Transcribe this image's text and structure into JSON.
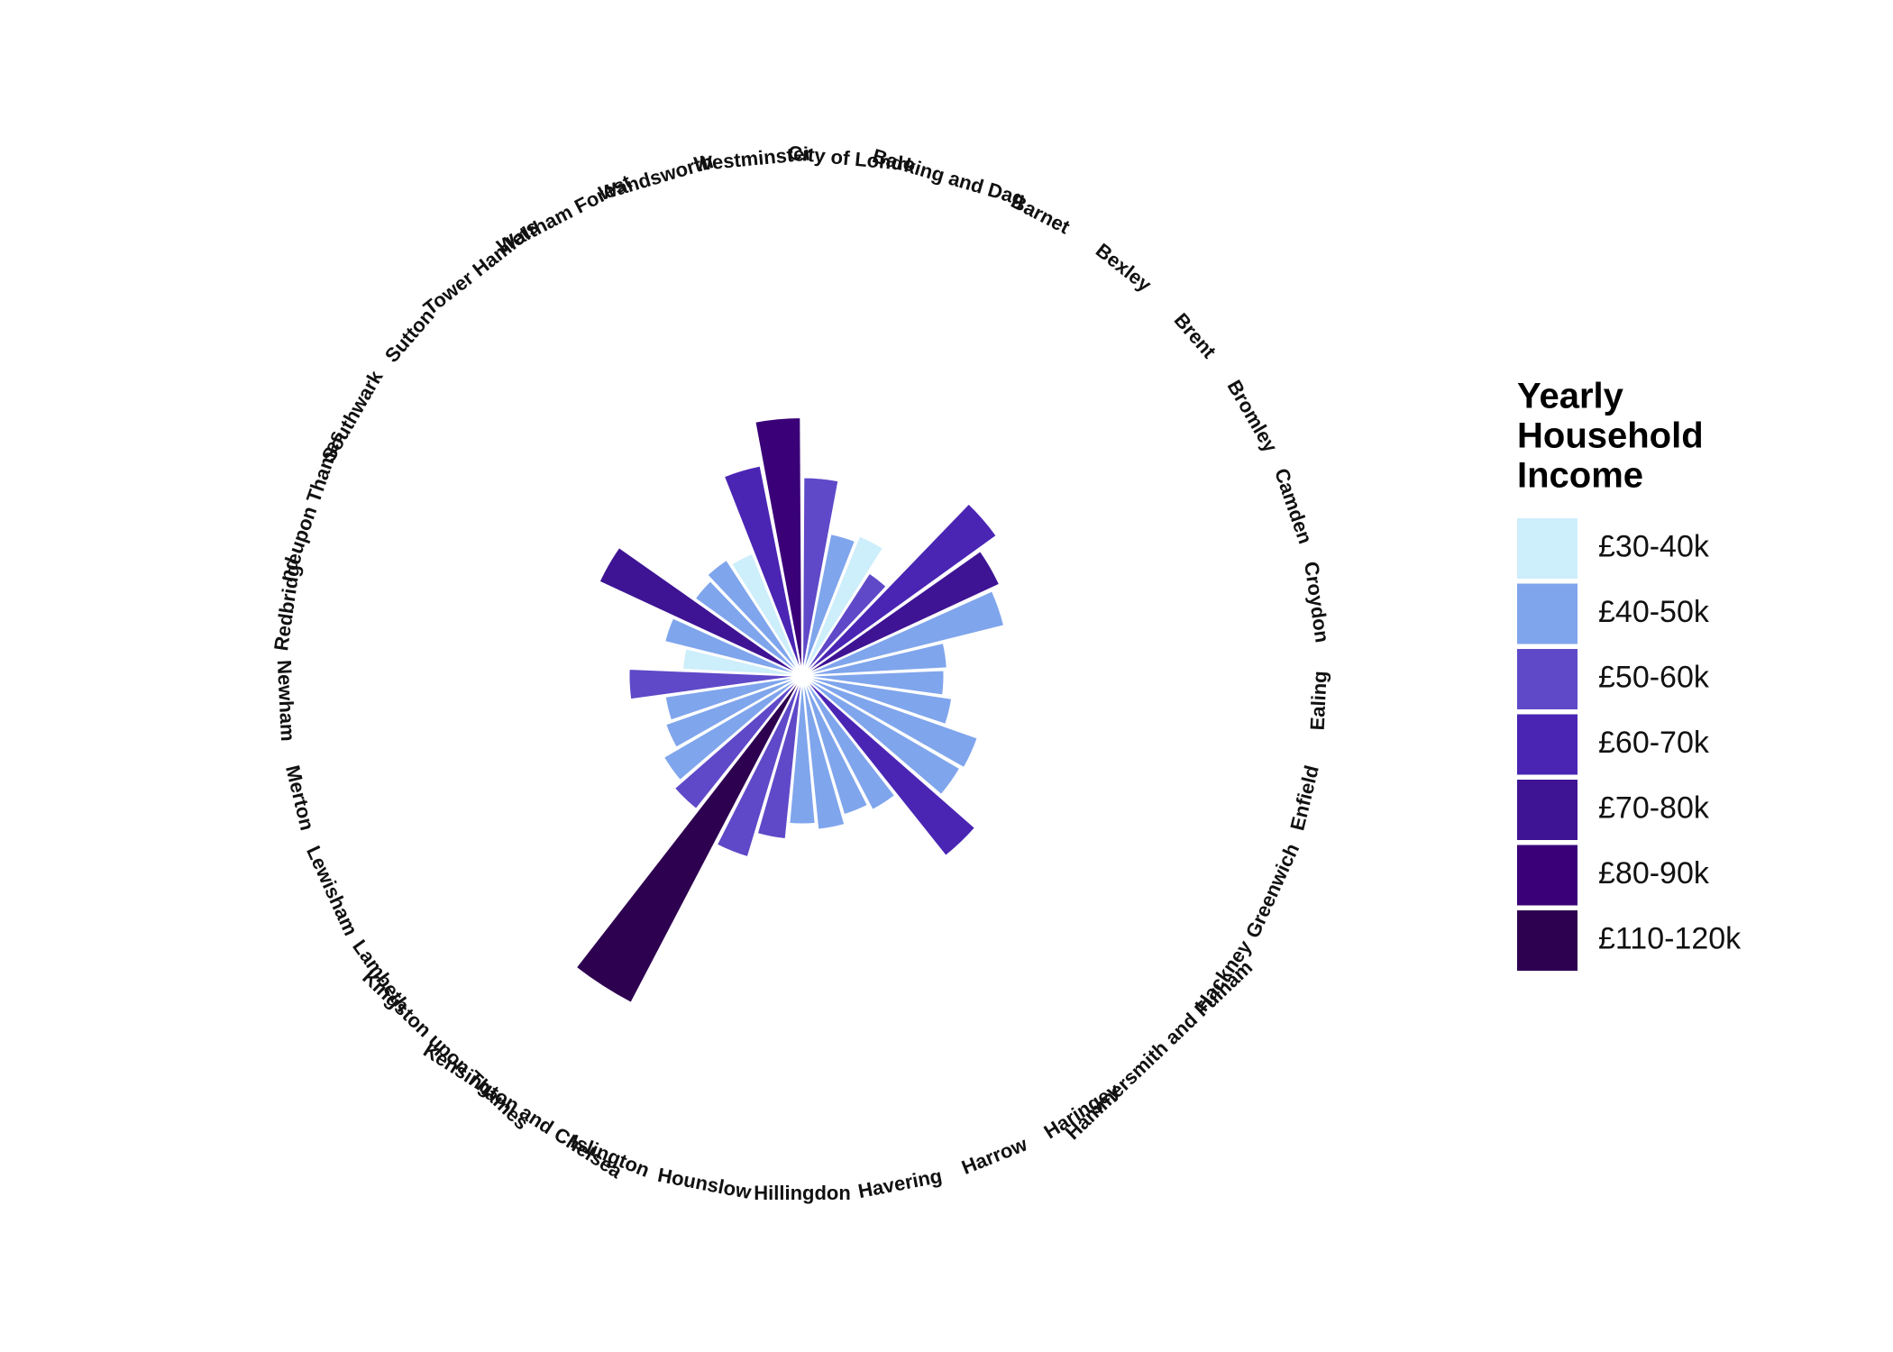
{
  "chart_data": {
    "type": "bar",
    "coordinate_system": "polar",
    "title": "",
    "xlabel": "",
    "ylabel": "",
    "grid": false,
    "legend": {
      "title": [
        "Yearly",
        "Household",
        "Income"
      ],
      "placement": "right",
      "entries": [
        {
          "label": "£30-40k",
          "color": "#cdeefb"
        },
        {
          "label": "£40-50k",
          "color": "#7fa5ec"
        },
        {
          "label": "£50-60k",
          "color": "#5f49c8"
        },
        {
          "label": "£60-70k",
          "color": "#4a25b4"
        },
        {
          "label": "£70-80k",
          "color": "#3e1494"
        },
        {
          "label": "£80-90k",
          "color": "#3a0078"
        },
        {
          "label": "£110-120k",
          "color": "#2e0050"
        }
      ]
    },
    "categories": [
      "City of London",
      "Barking and Dagenham",
      "Barnet",
      "Bexley",
      "Brent",
      "Bromley",
      "Camden",
      "Croydon",
      "Ealing",
      "Enfield",
      "Greenwich",
      "Hackney",
      "Hammersmith and Fulham",
      "Haringey",
      "Harrow",
      "Havering",
      "Hillingdon",
      "Hounslow",
      "Islington",
      "Kensington and Chelsea",
      "Kingston upon Thames",
      "Lambeth",
      "Lewisham",
      "Merton",
      "Newham",
      "Redbridge",
      "Richmond upon Thames",
      "Southwark",
      "Sutton",
      "Tower Hamlets",
      "Waltham Forest",
      "Wandsworth",
      "Westminster"
    ],
    "values": [
      63,
      46,
      48,
      39,
      76,
      69,
      66,
      46,
      45,
      48,
      59,
      58,
      73,
      48,
      46,
      49,
      47,
      52,
      60,
      117,
      54,
      51,
      46,
      44,
      55,
      38,
      45,
      71,
      42,
      44,
      42,
      68,
      82
    ],
    "income_band": [
      "£50-60k",
      "£40-50k",
      "£30-40k",
      "£50-60k",
      "£60-70k",
      "£70-80k",
      "£40-50k",
      "£40-50k",
      "£40-50k",
      "£40-50k",
      "£40-50k",
      "£40-50k",
      "£60-70k",
      "£40-50k",
      "£40-50k",
      "£40-50k",
      "£40-50k",
      "£50-60k",
      "£50-60k",
      "£110-120k",
      "£50-60k",
      "£40-50k",
      "£40-50k",
      "£40-50k",
      "£50-60k",
      "£30-40k",
      "£40-50k",
      "£70-80k",
      "£40-50k",
      "£40-50k",
      "£30-40k",
      "£60-70k",
      "£80-90k"
    ],
    "tick_labels": [
      "City of Londo",
      "Barking and Dag",
      "Barnet",
      "Bexley",
      "Brent",
      "Bromley",
      "Camden",
      "Croydon",
      "Ealing",
      "Enfield",
      "Greenwich",
      "Hackney",
      "Hammersmith and Fulham",
      "Haringey",
      "Harrow",
      "Havering",
      "Hillingdon",
      "Hounslow",
      "Islington",
      "Kensington and Chelsea",
      "Kingston upon Thames",
      "Lambeth",
      "Lewisham",
      "Merton",
      "Newham",
      "Redbridge",
      "nd upon Thames",
      "Southwark",
      "Sutton",
      "Tower Hamlets",
      "Waltham Forest",
      "Wandsworth",
      "Westminster"
    ]
  }
}
